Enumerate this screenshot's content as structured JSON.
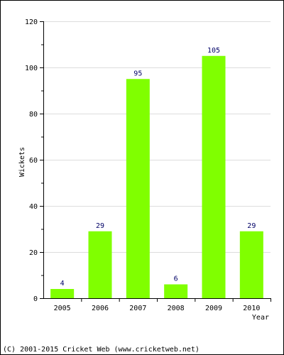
{
  "chart_data": {
    "type": "bar",
    "categories": [
      "2005",
      "2006",
      "2007",
      "2008",
      "2009",
      "2010"
    ],
    "values": [
      4,
      29,
      95,
      6,
      105,
      29
    ],
    "xlabel": "Year",
    "ylabel": "Wickets",
    "ylim": [
      0,
      120
    ],
    "yticks": [
      0,
      20,
      40,
      60,
      80,
      100,
      120
    ],
    "grid": true,
    "bar_color": "#80ff00",
    "value_label_color": "#000066",
    "grid_color": "#dddddd"
  },
  "footer": {
    "copyright": "(C) 2001-2015 Cricket Web (www.cricketweb.net)"
  }
}
